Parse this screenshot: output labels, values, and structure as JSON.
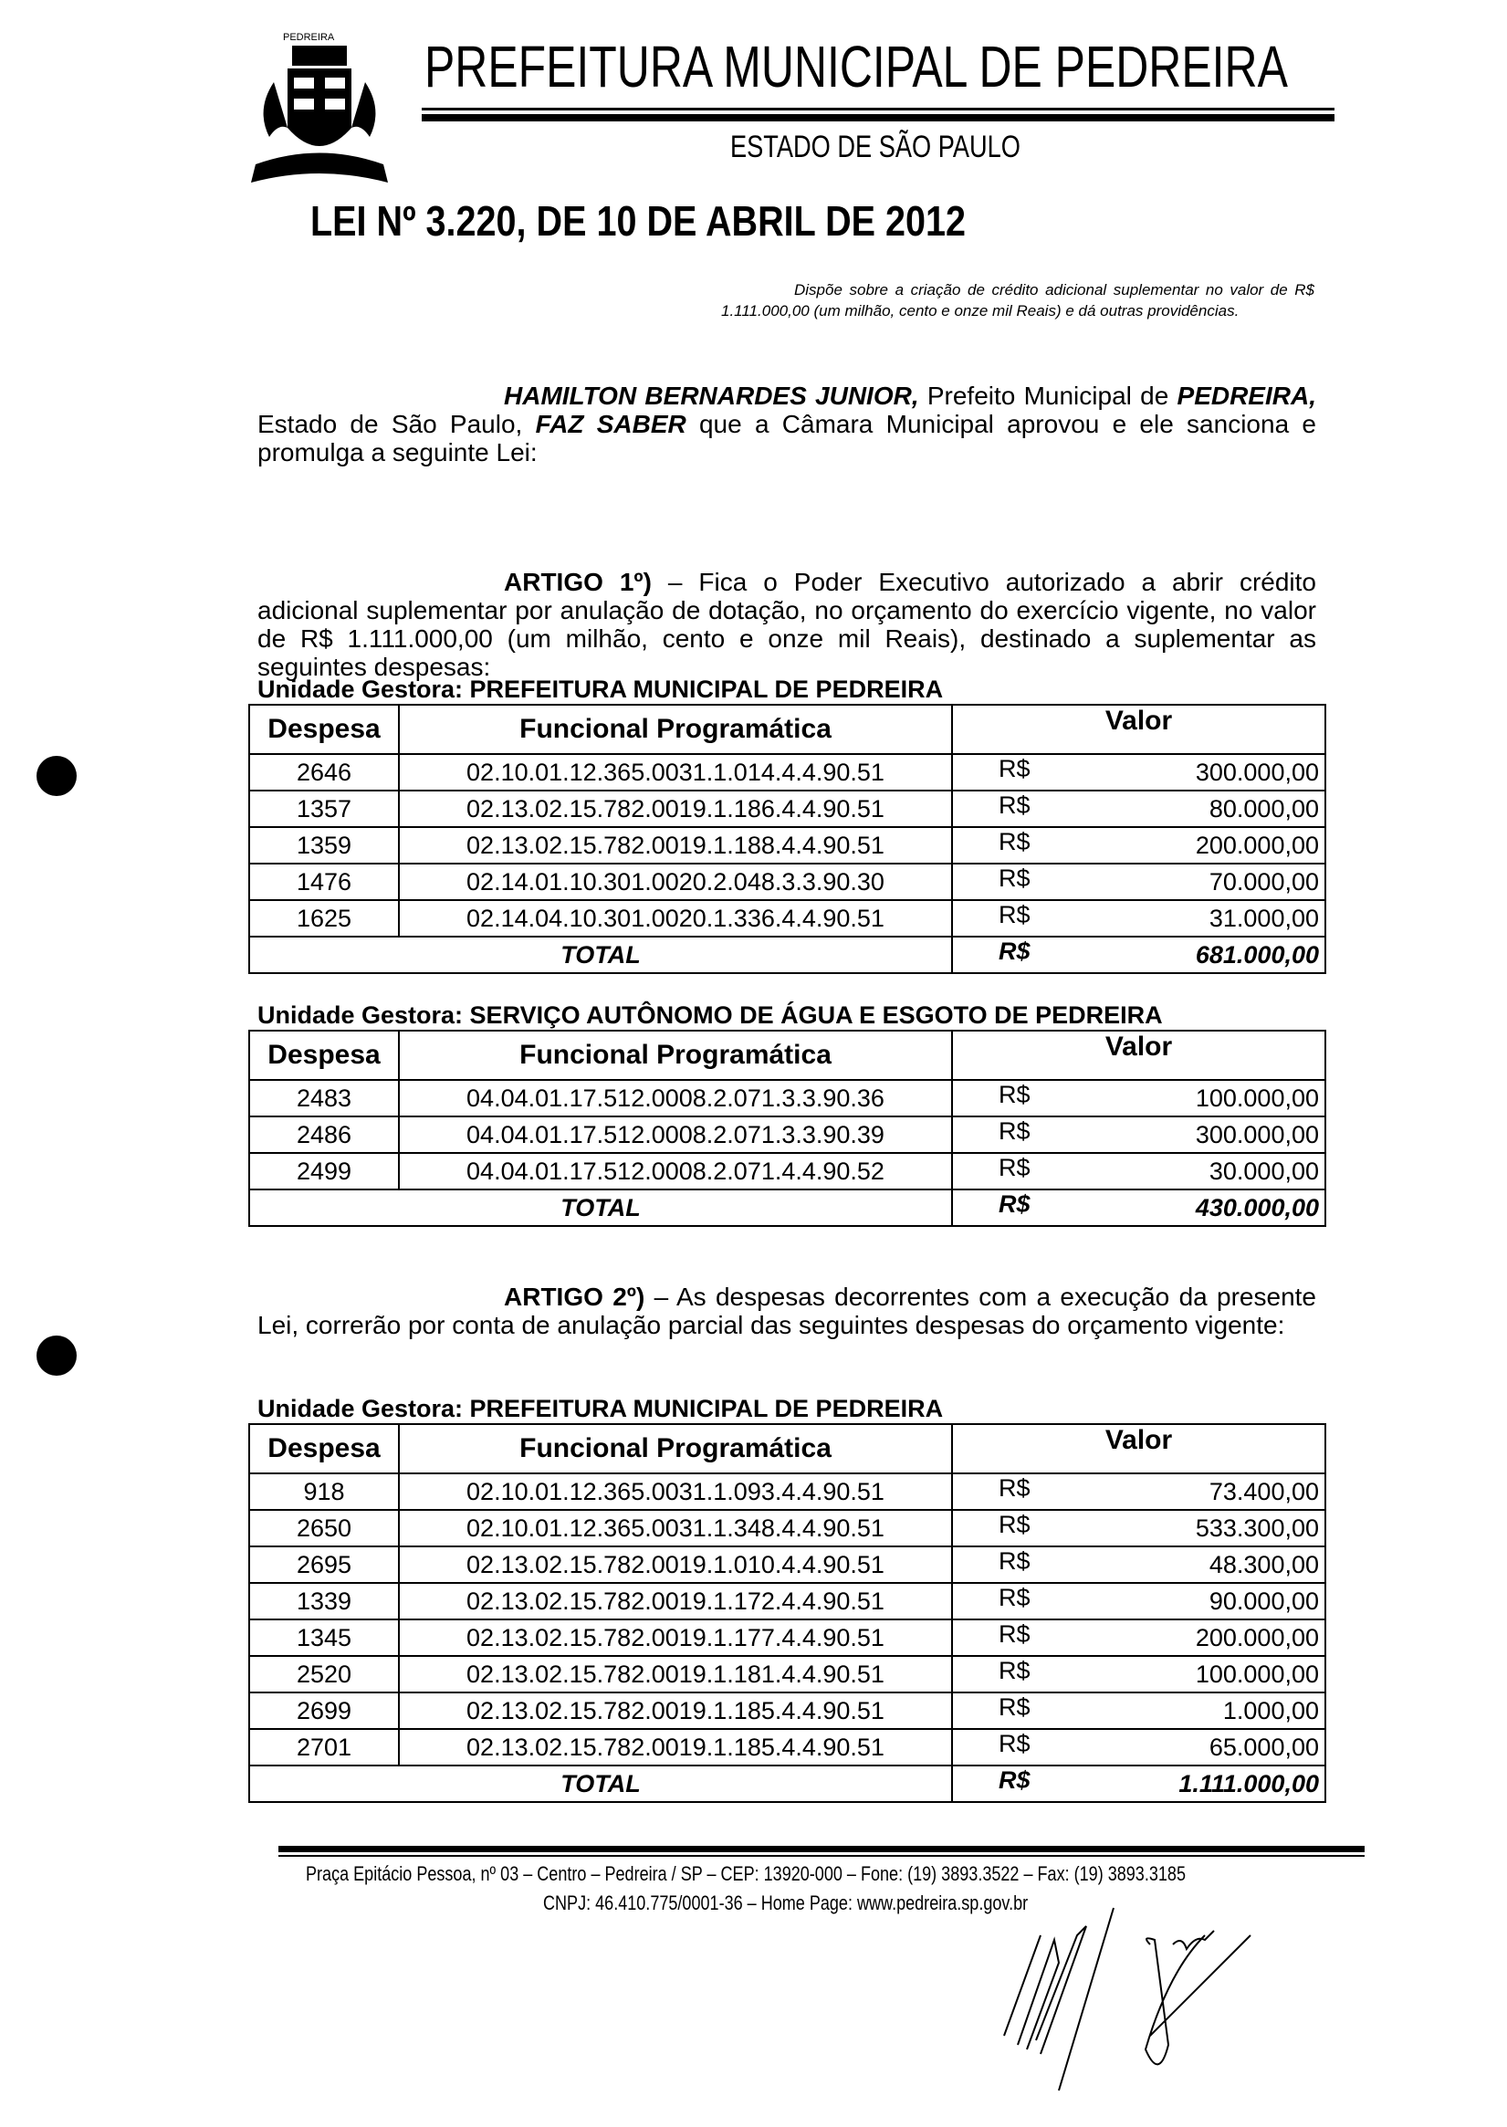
{
  "header": {
    "logo_text": "PEDREIRA",
    "title": "PREFEITURA MUNICIPAL DE PEDREIRA",
    "subtitle": "ESTADO DE SÃO PAULO"
  },
  "law": {
    "title": "LEI Nº 3.220, DE 10 DE ABRIL DE 2012",
    "summary": "Dispõe sobre a criação de crédito adicional suplementar no valor de R$ 1.111.000,00 (um milhão, cento e onze mil Reais) e dá outras providências.",
    "preamble": {
      "name": "HAMILTON BERNARDES JUNIOR,",
      "t1": " Prefeito Municipal de ",
      "city": "PEDREIRA,",
      "t2": " Estado de São Paulo, ",
      "faz": "FAZ SABER",
      "t3": " que a Câmara Municipal aprovou e ele sanciona e promulga a seguinte Lei:"
    },
    "art1": {
      "label": "ARTIGO 1º)",
      "text": " – Fica o Poder Executivo autorizado a abrir crédito adicional suplementar por anulação de dotação, no orçamento do exercício vigente, no valor de R$ 1.111.000,00 (um milhão, cento e onze mil Reais), destinado a suplementar as seguintes despesas:"
    },
    "art2": {
      "label": "ARTIGO 2º)",
      "text": " – As despesas decorrentes com a execução da presente Lei, correrão por conta de anulação parcial das seguintes despesas do orçamento vigente:"
    }
  },
  "columns": {
    "despesa": "Despesa",
    "funcional": "Funcional Programática",
    "valor": "Valor",
    "currency": "R$",
    "total": "TOTAL"
  },
  "tables": [
    {
      "unit": "Unidade Gestora: PREFEITURA MUNICIPAL DE PEDREIRA",
      "rows": [
        {
          "despesa": "2646",
          "funcional": "02.10.01.12.365.0031.1.014.4.4.90.51",
          "valor": "300.000,00"
        },
        {
          "despesa": "1357",
          "funcional": "02.13.02.15.782.0019.1.186.4.4.90.51",
          "valor": "80.000,00"
        },
        {
          "despesa": "1359",
          "funcional": "02.13.02.15.782.0019.1.188.4.4.90.51",
          "valor": "200.000,00"
        },
        {
          "despesa": "1476",
          "funcional": "02.14.01.10.301.0020.2.048.3.3.90.30",
          "valor": "70.000,00"
        },
        {
          "despesa": "1625",
          "funcional": "02.14.04.10.301.0020.1.336.4.4.90.51",
          "valor": "31.000,00"
        }
      ],
      "total": "681.000,00"
    },
    {
      "unit": "Unidade Gestora: SERVIÇO AUTÔNOMO DE ÁGUA E ESGOTO DE PEDREIRA",
      "rows": [
        {
          "despesa": "2483",
          "funcional": "04.04.01.17.512.0008.2.071.3.3.90.36",
          "valor": "100.000,00"
        },
        {
          "despesa": "2486",
          "funcional": "04.04.01.17.512.0008.2.071.3.3.90.39",
          "valor": "300.000,00"
        },
        {
          "despesa": "2499",
          "funcional": "04.04.01.17.512.0008.2.071.4.4.90.52",
          "valor": "30.000,00"
        }
      ],
      "total": "430.000,00"
    },
    {
      "unit": "Unidade Gestora: PREFEITURA MUNICIPAL DE PEDREIRA",
      "rows": [
        {
          "despesa": "918",
          "funcional": "02.10.01.12.365.0031.1.093.4.4.90.51",
          "valor": "73.400,00"
        },
        {
          "despesa": "2650",
          "funcional": "02.10.01.12.365.0031.1.348.4.4.90.51",
          "valor": "533.300,00"
        },
        {
          "despesa": "2695",
          "funcional": "02.13.02.15.782.0019.1.010.4.4.90.51",
          "valor": "48.300,00"
        },
        {
          "despesa": "1339",
          "funcional": "02.13.02.15.782.0019.1.172.4.4.90.51",
          "valor": "90.000,00"
        },
        {
          "despesa": "1345",
          "funcional": "02.13.02.15.782.0019.1.177.4.4.90.51",
          "valor": "200.000,00"
        },
        {
          "despesa": "2520",
          "funcional": "02.13.02.15.782.0019.1.181.4.4.90.51",
          "valor": "100.000,00"
        },
        {
          "despesa": "2699",
          "funcional": "02.13.02.15.782.0019.1.185.4.4.90.51",
          "valor": "1.000,00"
        },
        {
          "despesa": "2701",
          "funcional": "02.13.02.15.782.0019.1.185.4.4.90.51",
          "valor": "65.000,00"
        }
      ],
      "total": "1.111.000,00"
    }
  ],
  "footer": {
    "address": "Praça Epitácio Pessoa, nº 03 – Centro – Pedreira / SP – CEP: 13920-000 – Fone: (19) 3893.3522 – Fax: (19) 3893.3185",
    "cnpj": "CNPJ: 46.410.775/0001-36 – Home Page: www.pedreira.sp.gov.br"
  }
}
